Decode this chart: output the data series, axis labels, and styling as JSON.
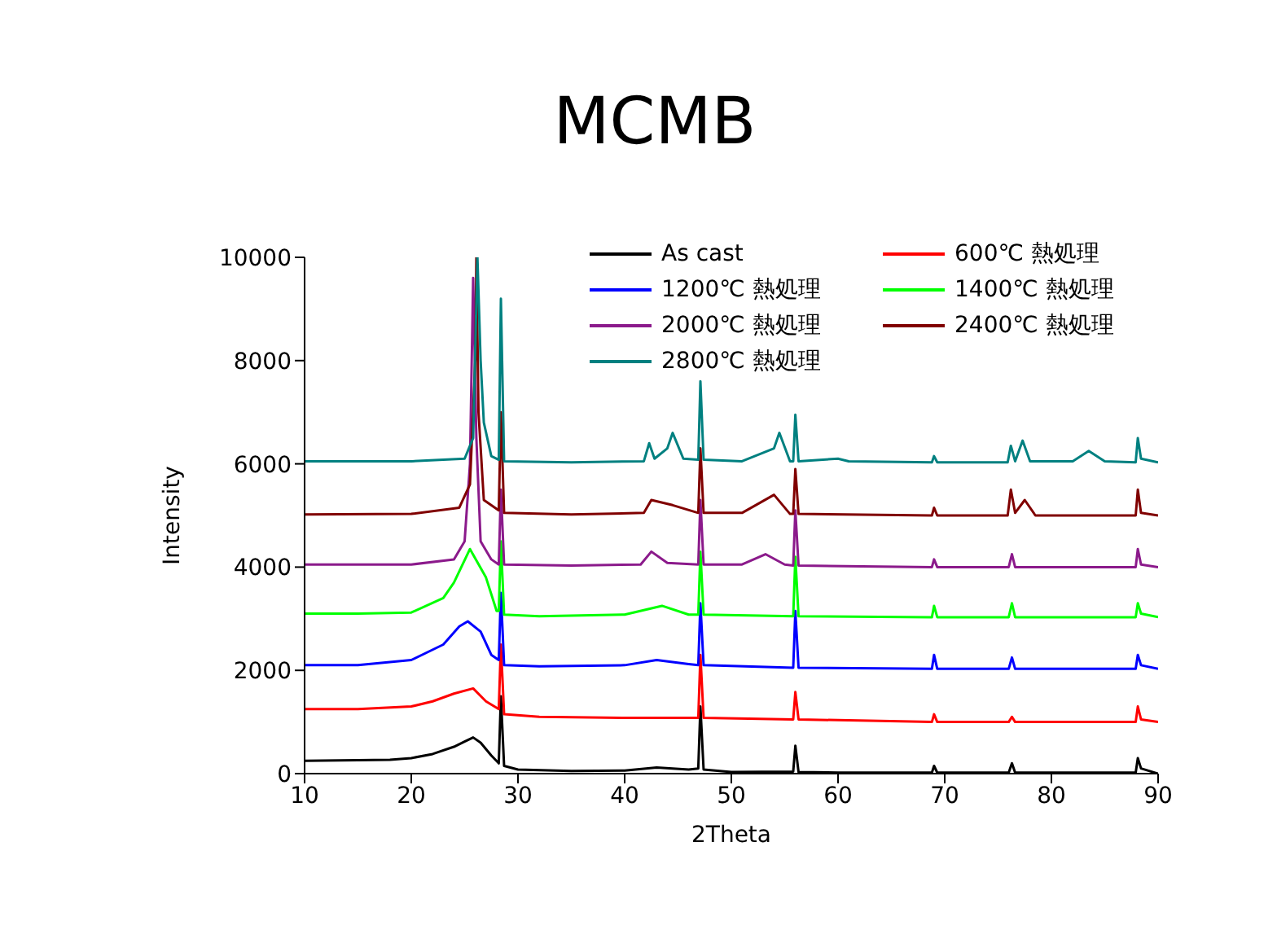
{
  "chart_data": {
    "type": "line",
    "title": "MCMB",
    "xlabel": "2Theta",
    "ylabel": "Intensity",
    "xlim": [
      10,
      90
    ],
    "ylim": [
      0,
      10000
    ],
    "xticks": [
      10,
      20,
      30,
      40,
      50,
      60,
      70,
      80,
      90
    ],
    "yticks": [
      0,
      2000,
      4000,
      6000,
      8000,
      10000
    ],
    "legend": "top right",
    "marker": "none",
    "line_style": "solid",
    "series": [
      {
        "name": "As cast",
        "color": "#000000",
        "x": [
          10,
          15,
          18,
          20,
          22,
          24,
          25,
          25.8,
          26.5,
          27.5,
          28.2,
          28.4,
          28.7,
          30,
          35,
          40,
          43,
          46,
          46.9,
          47.1,
          47.4,
          50,
          55.8,
          56,
          56.3,
          60,
          68.8,
          69,
          69.3,
          76,
          76.3,
          76.6,
          87.9,
          88.1,
          88.4,
          90
        ],
        "values": [
          250,
          260,
          270,
          300,
          380,
          520,
          620,
          700,
          600,
          350,
          200,
          1500,
          150,
          80,
          50,
          60,
          120,
          80,
          100,
          1300,
          80,
          30,
          40,
          540,
          30,
          20,
          20,
          150,
          20,
          20,
          200,
          20,
          20,
          300,
          100,
          0
        ]
      },
      {
        "name": "600℃ 熱処理",
        "color": "#ff0000",
        "x": [
          10,
          15,
          20,
          22,
          24,
          25.8,
          27,
          28.2,
          28.4,
          28.7,
          32,
          40,
          46.9,
          47.1,
          47.4,
          55.8,
          56,
          56.3,
          68.8,
          69,
          69.3,
          76,
          76.3,
          76.6,
          87.9,
          88.1,
          88.4,
          90
        ],
        "values": [
          1250,
          1250,
          1300,
          1400,
          1550,
          1650,
          1400,
          1250,
          2500,
          1150,
          1100,
          1080,
          1080,
          2300,
          1080,
          1050,
          1580,
          1050,
          1000,
          1150,
          1000,
          1000,
          1100,
          1000,
          1000,
          1300,
          1050,
          1000
        ]
      },
      {
        "name": "1200℃ 熱処理",
        "color": "#0000ff",
        "x": [
          10,
          15,
          20,
          23,
          24.5,
          25.3,
          26.5,
          27.5,
          28.2,
          28.4,
          28.7,
          32,
          40,
          43,
          46,
          46.9,
          47.1,
          47.4,
          55.8,
          56,
          56.3,
          68.8,
          69,
          69.3,
          76,
          76.3,
          76.6,
          87.9,
          88.1,
          88.4,
          90
        ],
        "values": [
          2100,
          2100,
          2200,
          2500,
          2850,
          2950,
          2750,
          2300,
          2200,
          3500,
          2100,
          2080,
          2100,
          2200,
          2120,
          2100,
          3300,
          2100,
          2050,
          3150,
          2050,
          2030,
          2300,
          2030,
          2030,
          2250,
          2030,
          2030,
          2300,
          2100,
          2030
        ]
      },
      {
        "name": "1400℃ 熱処理",
        "color": "#00ff00",
        "x": [
          10,
          15,
          20,
          23,
          24,
          25.5,
          27,
          28,
          28.2,
          28.4,
          28.7,
          32,
          40,
          43.5,
          46,
          46.9,
          47.1,
          47.4,
          55.8,
          56,
          56.3,
          68.8,
          69,
          69.3,
          76,
          76.3,
          76.6,
          87.9,
          88.1,
          88.4,
          90
        ],
        "values": [
          3100,
          3100,
          3120,
          3400,
          3700,
          4350,
          3800,
          3150,
          3150,
          4500,
          3080,
          3050,
          3080,
          3250,
          3080,
          3080,
          4300,
          3080,
          3050,
          4200,
          3050,
          3030,
          3250,
          3030,
          3030,
          3300,
          3030,
          3030,
          3300,
          3100,
          3030
        ]
      },
      {
        "name": "2000℃ 熱処理",
        "color": "#8b1a8b",
        "x": [
          10,
          20,
          24,
          25,
          25.5,
          25.8,
          26.1,
          26.5,
          27.5,
          28.2,
          28.4,
          28.7,
          35,
          41.5,
          42.5,
          44,
          46.9,
          47.1,
          47.4,
          51,
          53.2,
          55,
          55.8,
          56,
          56.3,
          68.8,
          69,
          69.3,
          76,
          76.3,
          76.6,
          87.9,
          88.1,
          88.4,
          90
        ],
        "values": [
          4050,
          4050,
          4150,
          4500,
          6000,
          9600,
          6500,
          4500,
          4150,
          4050,
          5500,
          4050,
          4030,
          4050,
          4300,
          4080,
          4050,
          5300,
          4050,
          4050,
          4250,
          4050,
          4030,
          5100,
          4030,
          4000,
          4150,
          4000,
          4000,
          4250,
          4000,
          4000,
          4350,
          4050,
          4000
        ]
      },
      {
        "name": "2400℃ 熱処理",
        "color": "#800000",
        "x": [
          10,
          20,
          24.5,
          25.5,
          26,
          26.1,
          26.3,
          26.8,
          28.2,
          28.4,
          28.7,
          35,
          41.8,
          42.5,
          44.5,
          46.9,
          47.1,
          47.4,
          51,
          54,
          55.5,
          55.8,
          56,
          56.3,
          68.8,
          69,
          69.3,
          75.9,
          76.2,
          76.6,
          77.5,
          78.5,
          87.9,
          88.1,
          88.4,
          90
        ],
        "values": [
          5020,
          5030,
          5150,
          5600,
          8000,
          10000,
          7000,
          5300,
          5100,
          7000,
          5050,
          5020,
          5050,
          5300,
          5200,
          5050,
          6300,
          5050,
          5050,
          5400,
          5030,
          5030,
          5900,
          5030,
          5000,
          5150,
          5000,
          5000,
          5500,
          5050,
          5300,
          5000,
          5000,
          5500,
          5050,
          5000
        ]
      },
      {
        "name": "2800℃ 熱処理",
        "color": "#008080",
        "x": [
          10,
          20,
          25,
          25.8,
          26.2,
          26.5,
          26.8,
          27.5,
          28.2,
          28.4,
          28.7,
          35,
          41.8,
          42.3,
          42.8,
          44,
          44.5,
          45.5,
          46.9,
          47.1,
          47.4,
          51,
          54,
          54.5,
          55.5,
          55.8,
          56,
          56.3,
          60,
          61,
          68.8,
          69,
          69.3,
          75.9,
          76.2,
          76.6,
          77.3,
          78,
          82,
          83.5,
          85,
          87.9,
          88.1,
          88.4,
          90
        ],
        "values": [
          6050,
          6050,
          6100,
          6500,
          10000,
          8000,
          6800,
          6150,
          6080,
          9200,
          6050,
          6030,
          6050,
          6400,
          6100,
          6300,
          6600,
          6100,
          6080,
          7600,
          6080,
          6050,
          6300,
          6600,
          6050,
          6050,
          6950,
          6050,
          6100,
          6050,
          6030,
          6150,
          6030,
          6030,
          6350,
          6050,
          6450,
          6050,
          6050,
          6250,
          6050,
          6030,
          6500,
          6100,
          6030
        ]
      }
    ]
  }
}
